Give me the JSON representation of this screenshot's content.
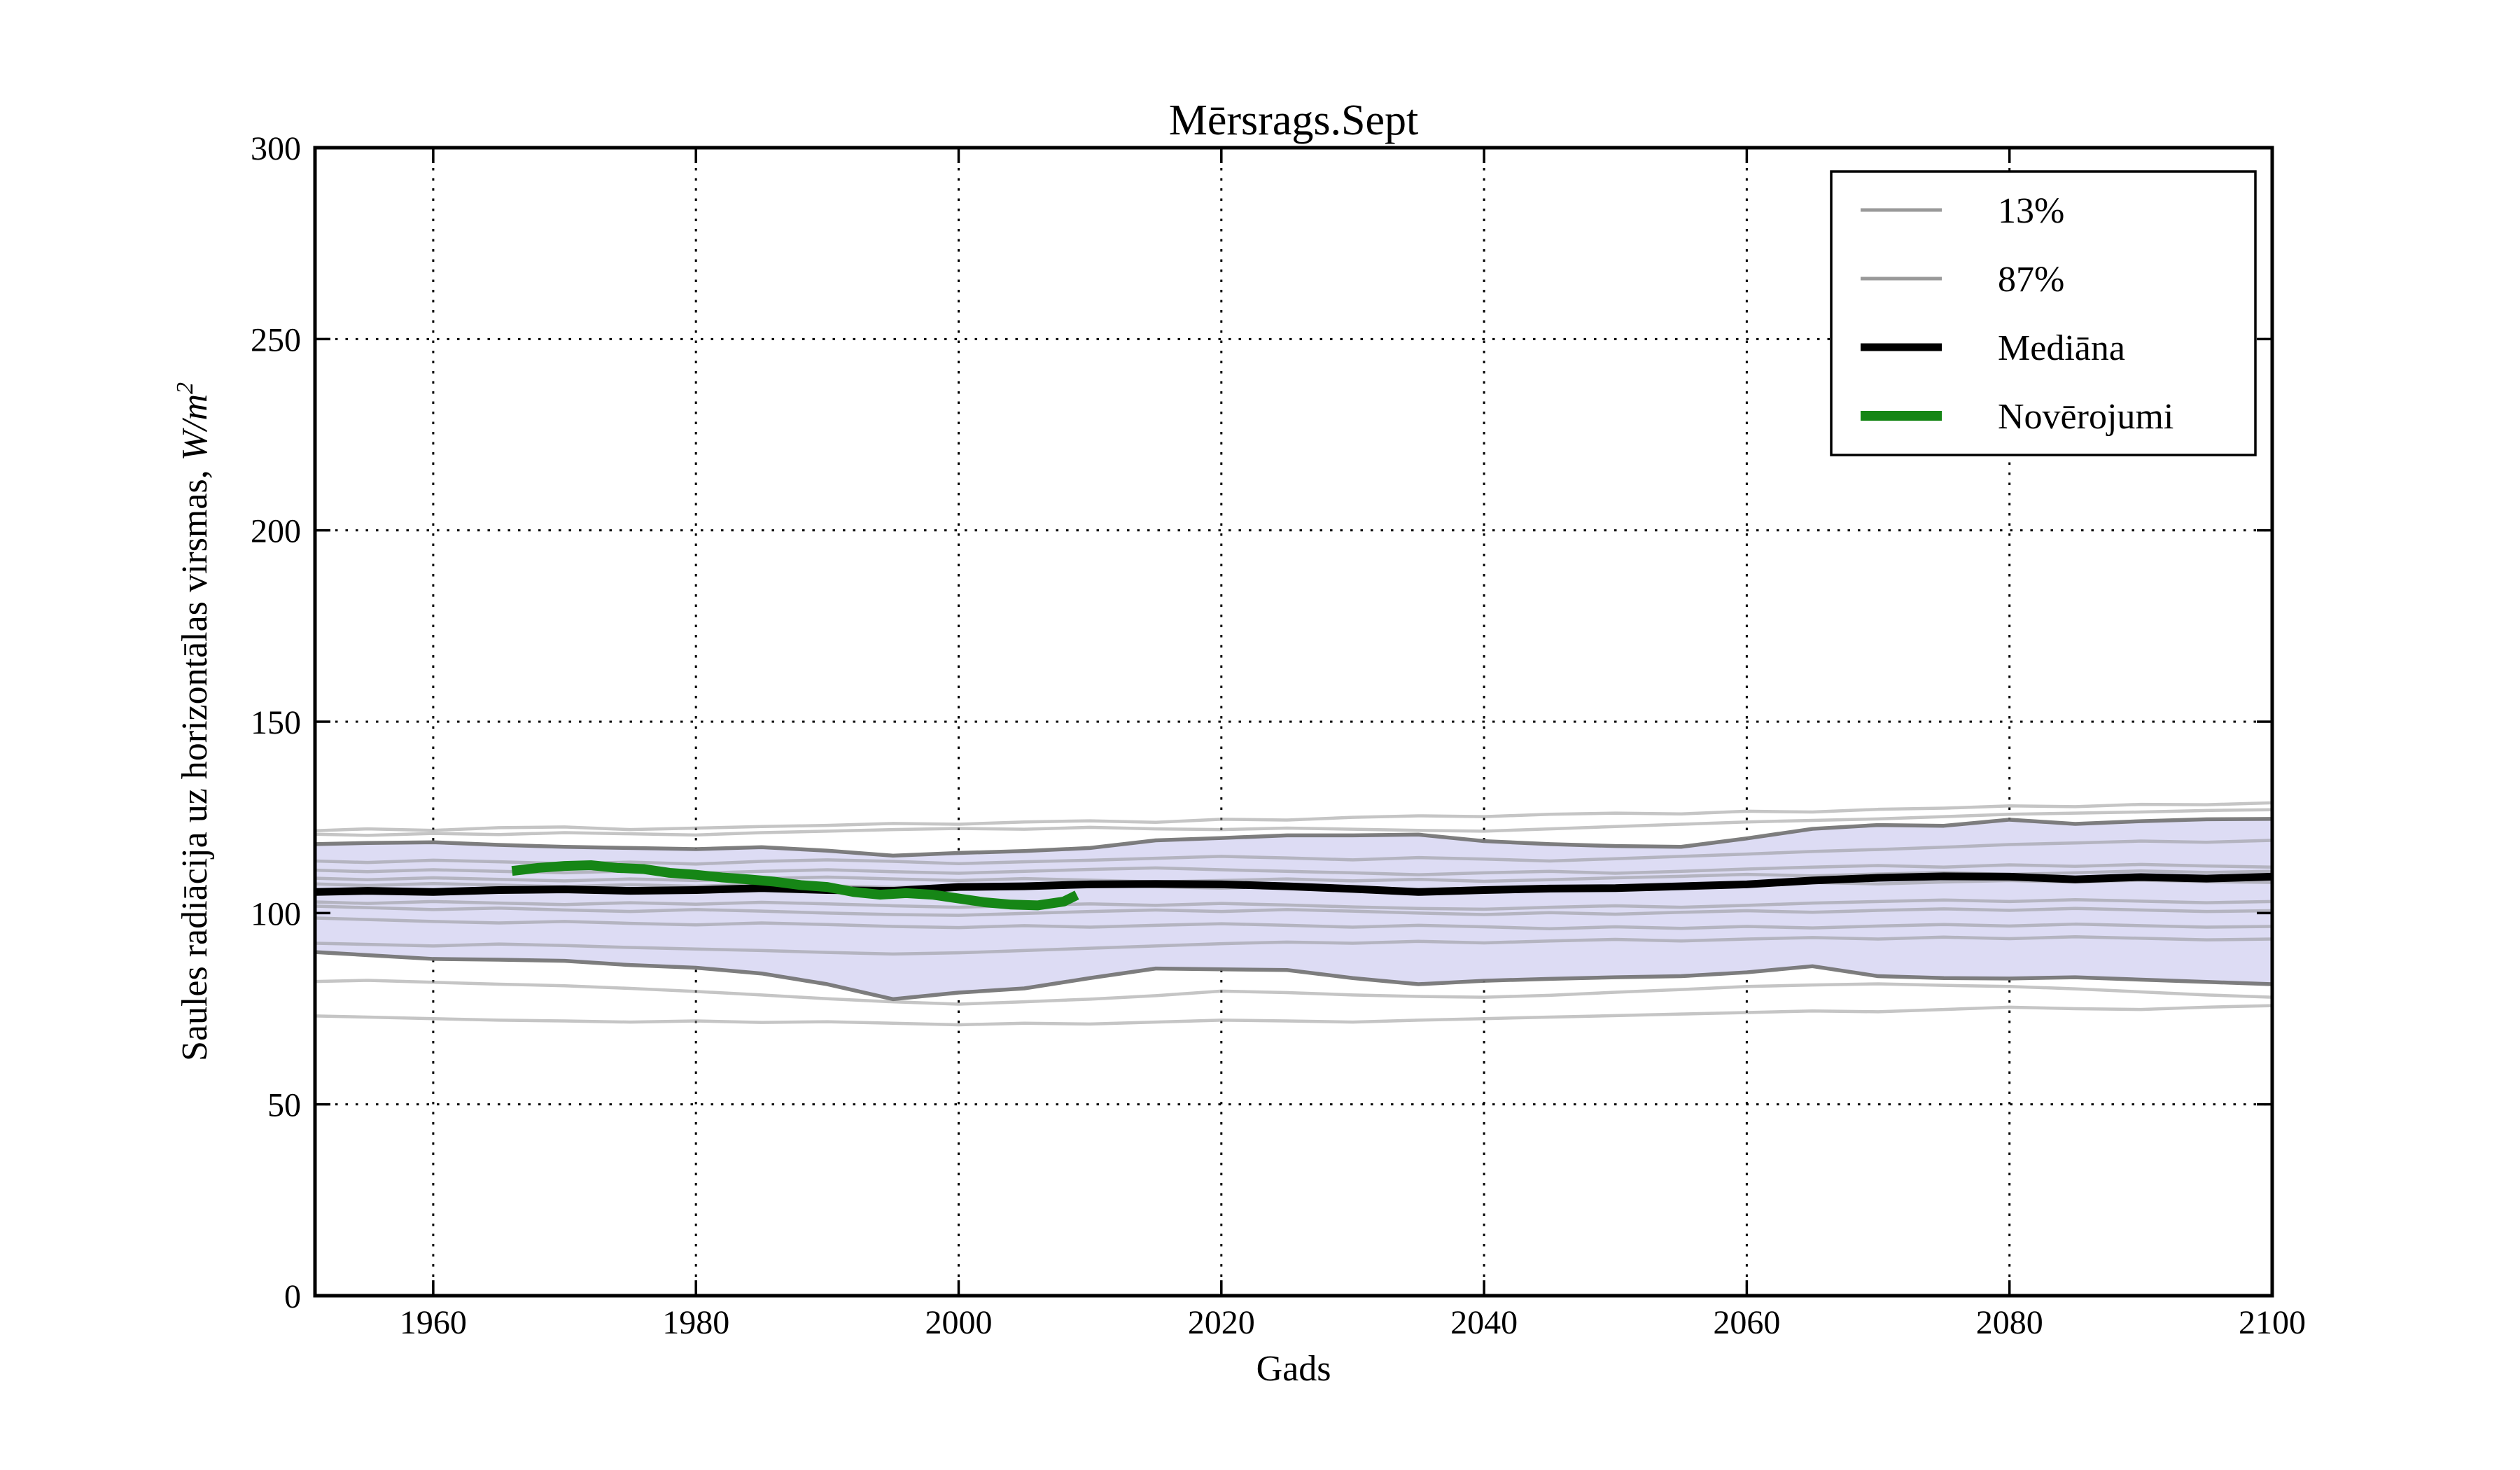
{
  "title": "Mērsrags.Sept",
  "xlabel": "Gads",
  "ylabel": {
    "prefix": "Saules radiācija uz horizontālas virsmas, ",
    "math": "W/m",
    "sup": "2"
  },
  "legend": {
    "items": [
      {
        "label": "13%",
        "color": "#999999",
        "width": 5
      },
      {
        "label": "87%",
        "color": "#999999",
        "width": 5
      },
      {
        "label": "Mediāna",
        "color": "#000000",
        "width": 11
      },
      {
        "label": "Novērojumi",
        "color": "#168616",
        "width": 14
      }
    ]
  },
  "chart_data": {
    "type": "line",
    "title": "Mērsrags.Sept",
    "xlabel": "Gads",
    "ylabel": "Saules radiācija uz horizontālas virsmas, W/m²",
    "xlim": [
      1951,
      2100
    ],
    "ylim": [
      0,
      300
    ],
    "xticks": [
      1960,
      1980,
      2000,
      2020,
      2040,
      2060,
      2080,
      2100
    ],
    "yticks": [
      0,
      50,
      100,
      150,
      200,
      250,
      300
    ],
    "grid": "dotted",
    "grid_color": "#000000",
    "background": "#ffffff",
    "band_fill": "#dddcf4",
    "ensemble_color": "#8c8c8c",
    "ensemble_alpha": 0.5,
    "legend_position": "upper right",
    "years": [
      1951,
      1955,
      1960,
      1965,
      1970,
      1975,
      1980,
      1985,
      1990,
      1995,
      2000,
      2005,
      2010,
      2015,
      2020,
      2025,
      2030,
      2035,
      2040,
      2045,
      2050,
      2055,
      2060,
      2065,
      2070,
      2075,
      2080,
      2085,
      2090,
      2095,
      2100
    ],
    "series": [
      {
        "name": "13%",
        "role": "lower_percentile",
        "color": "#707070",
        "width": 5.5,
        "values": [
          89.8,
          89,
          88,
          87.8,
          87.5,
          86.4,
          85.7,
          84.2,
          81.4,
          77.5,
          79.2,
          80.3,
          83,
          85.5,
          85.3,
          85.1,
          83,
          81.4,
          82.3,
          82.8,
          83.2,
          83.5,
          84.5,
          86.1,
          83.5,
          83,
          82.9,
          83.2,
          82.6,
          82,
          81.4
        ]
      },
      {
        "name": "87%",
        "role": "upper_percentile",
        "color": "#707070",
        "width": 5.5,
        "values": [
          118,
          118.3,
          118.5,
          117.8,
          117.3,
          117,
          116.7,
          117.2,
          116.3,
          115,
          115.7,
          116.2,
          117,
          119,
          119.6,
          120.3,
          120.3,
          120.5,
          118.8,
          118,
          117.5,
          117.3,
          119.5,
          122,
          123,
          122.8,
          124.4,
          123.3,
          124,
          124.5,
          124.6
        ]
      },
      {
        "name": "Mediāna",
        "role": "median",
        "color": "#000000",
        "width": 11,
        "values": [
          105.5,
          105.8,
          105.5,
          106,
          106.2,
          105.8,
          106,
          106.5,
          106,
          105.8,
          106.8,
          107,
          107.5,
          107.6,
          107.5,
          107,
          106.3,
          105.5,
          106,
          106.4,
          106.5,
          107,
          107.5,
          108.5,
          109.2,
          109.6,
          109.5,
          108.8,
          109.4,
          109,
          109.5
        ]
      },
      {
        "name": "Novērojumi",
        "role": "observations",
        "color": "#168616",
        "width": 14,
        "years": [
          1966,
          1968,
          1970,
          1972,
          1974,
          1976,
          1978,
          1980,
          1982,
          1984,
          1986,
          1988,
          1990,
          1992,
          1994,
          1996,
          1998,
          2000,
          2002,
          2004,
          2006,
          2008,
          2009
        ],
        "values": [
          111,
          111.8,
          112.3,
          112.5,
          111.8,
          111.5,
          110.5,
          110,
          109.3,
          108.8,
          108.2,
          107.3,
          106.8,
          105.5,
          104.8,
          105.2,
          104.8,
          103.8,
          102.8,
          102.2,
          102,
          103,
          104.7
        ]
      },
      {
        "name": "ensemble-1",
        "role": "ensemble",
        "values": [
          121.5,
          122,
          121.6,
          122.3,
          122.5,
          121.8,
          122.2,
          122.6,
          122.9,
          123.4,
          123.2,
          123.8,
          124.1,
          123.7,
          124.5,
          124.3,
          125,
          125.4,
          125.2,
          125.8,
          126.1,
          125.9,
          126.6,
          126.4,
          127.1,
          127.4,
          128,
          127.8,
          128.4,
          128.3,
          128.8
        ]
      },
      {
        "name": "ensemble-2",
        "role": "ensemble",
        "values": [
          120.6,
          120.3,
          120.8,
          120.5,
          121,
          120.7,
          120.4,
          121,
          121.4,
          121.8,
          122.1,
          121.9,
          122.4,
          122,
          121.8,
          122.2,
          121.9,
          121.6,
          121.4,
          122,
          122.6,
          123.2,
          123.8,
          124.2,
          124.6,
          125.2,
          125.8,
          126.1,
          126.4,
          126.8,
          127
        ]
      },
      {
        "name": "ensemble-3",
        "role": "ensemble",
        "values": [
          113.6,
          113.2,
          113.8,
          113.4,
          112.9,
          113.3,
          112.8,
          113.5,
          113.9,
          113.5,
          112.9,
          113.4,
          113.8,
          114.3,
          114.8,
          114.4,
          113.9,
          114.5,
          114.1,
          113.6,
          114.2,
          114.8,
          115.4,
          116.1,
          116.6,
          117.2,
          117.9,
          118.3,
          118.8,
          118.5,
          119
        ]
      },
      {
        "name": "ensemble-4",
        "role": "ensemble",
        "values": [
          111.2,
          110.8,
          111.3,
          110.9,
          110.5,
          111,
          110.4,
          110.9,
          111.3,
          110.8,
          110.4,
          110.9,
          111.4,
          111.8,
          111.3,
          110.9,
          110.5,
          110,
          110.5,
          110.9,
          110.4,
          110.9,
          111.5,
          112,
          112.4,
          112,
          112.6,
          112.2,
          112.7,
          112.3,
          112
        ]
      },
      {
        "name": "ensemble-5",
        "role": "ensemble",
        "values": [
          109.1,
          108.7,
          109.2,
          108.8,
          108.4,
          108.9,
          108.5,
          109,
          109.4,
          108.9,
          108.5,
          109,
          108.6,
          108.1,
          108.5,
          108.9,
          108.4,
          108.8,
          108.3,
          108.7,
          109.2,
          109.6,
          110.1,
          109.7,
          110.2,
          110.6,
          110.1,
          110.5,
          111,
          110.6,
          110.9
        ]
      },
      {
        "name": "ensemble-6",
        "role": "ensemble",
        "values": [
          107.6,
          107.2,
          107.7,
          107.3,
          106.9,
          107.4,
          107,
          107.5,
          107.1,
          106.7,
          107.2,
          106.8,
          107.3,
          106.9,
          106.5,
          107,
          106.6,
          106.1,
          106.6,
          107,
          106.5,
          107,
          107.6,
          108,
          107.6,
          108.1,
          108.5,
          108.1,
          108.6,
          108.2,
          108
        ]
      },
      {
        "name": "ensemble-7",
        "role": "ensemble",
        "values": [
          102.9,
          102.5,
          103,
          102.6,
          102.2,
          102.7,
          102.3,
          102.8,
          102.4,
          101.9,
          101.5,
          102,
          102.4,
          102,
          102.5,
          102.1,
          101.6,
          101.2,
          101,
          101.5,
          101.9,
          101.5,
          102,
          102.6,
          103,
          103.4,
          103,
          103.5,
          103.1,
          102.7,
          103
        ]
      },
      {
        "name": "ensemble-8",
        "role": "ensemble",
        "values": [
          101.8,
          101.4,
          100.9,
          101.3,
          100.8,
          100.4,
          100.9,
          100.5,
          100,
          99.6,
          99.4,
          99.9,
          100.4,
          100.8,
          100.4,
          100.9,
          100.5,
          100,
          99.6,
          100.1,
          99.7,
          100.2,
          100.6,
          100.2,
          100.7,
          101.1,
          100.7,
          101.2,
          100.8,
          100.4,
          100.6
        ]
      },
      {
        "name": "ensemble-9",
        "role": "ensemble",
        "values": [
          98.7,
          98.3,
          97.8,
          97.4,
          97.8,
          97.3,
          96.9,
          97.4,
          97,
          96.5,
          96.2,
          96.7,
          96.3,
          96.8,
          97.2,
          96.8,
          96.3,
          96.8,
          96.4,
          95.9,
          96.4,
          96,
          96.5,
          96.1,
          96.6,
          97,
          96.6,
          97.1,
          96.7,
          96.3,
          96.5
        ]
      },
      {
        "name": "ensemble-10",
        "role": "ensemble",
        "values": [
          92.1,
          91.8,
          91.4,
          91.9,
          91.5,
          91,
          90.6,
          90.2,
          89.7,
          89.3,
          89.6,
          90.2,
          90.8,
          91.4,
          92,
          92.4,
          92.1,
          92.6,
          92.2,
          92.7,
          93.1,
          92.7,
          93.2,
          93.6,
          93.2,
          93.7,
          93.3,
          93.8,
          93.4,
          93,
          93.2
        ]
      },
      {
        "name": "ensemble-11",
        "role": "ensemble",
        "values": [
          82.1,
          82.4,
          81.9,
          81.4,
          81,
          80.3,
          79.5,
          78.6,
          77.6,
          76.8,
          76.2,
          76.8,
          77.5,
          78.4,
          79.6,
          79.2,
          78.6,
          78.2,
          78,
          78.5,
          79.3,
          80,
          80.8,
          81.2,
          81.5,
          81.1,
          80.8,
          80.2,
          79.4,
          78.6,
          78
        ]
      },
      {
        "name": "ensemble-12",
        "role": "ensemble",
        "values": [
          73.1,
          72.8,
          72.4,
          72,
          71.8,
          71.5,
          71.8,
          71.4,
          71.6,
          71.2,
          70.8,
          71.2,
          71,
          71.5,
          72,
          71.8,
          71.5,
          72,
          72.4,
          72.8,
          73.2,
          73.6,
          74,
          74.4,
          74.2,
          74.8,
          75.4,
          75,
          74.8,
          75.4,
          75.8
        ]
      }
    ]
  }
}
